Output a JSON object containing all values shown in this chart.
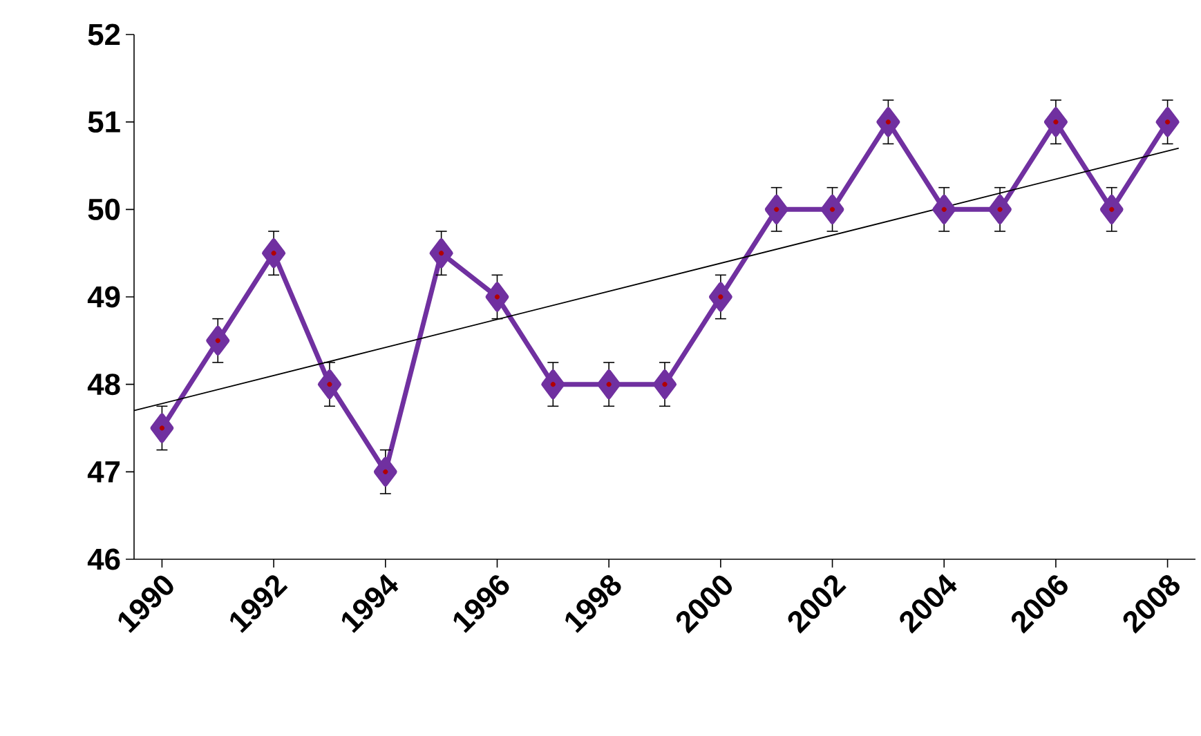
{
  "chart_data": {
    "type": "line",
    "x": [
      1990,
      1991,
      1992,
      1993,
      1994,
      1995,
      1996,
      1997,
      1998,
      1999,
      2000,
      2001,
      2002,
      2003,
      2004,
      2005,
      2006,
      2007,
      2008
    ],
    "series": [
      {
        "color": "#7030a0",
        "values": [
          47.5,
          48.5,
          49.5,
          48,
          47,
          49.5,
          49,
          48,
          48,
          48,
          49,
          50,
          50,
          51,
          50,
          50,
          51,
          50,
          51
        ],
        "errors": [
          0.25,
          0.25,
          0.25,
          0.25,
          0.25,
          0.25,
          0.25,
          0.25,
          0.25,
          0.25,
          0.25,
          0.25,
          0.25,
          0.25,
          0.25,
          0.25,
          0.25,
          0.25,
          0.25
        ],
        "marker": "diamond",
        "line_style": "solid"
      },
      {
        "type": "line",
        "color": "#000000",
        "x": [
          1989.5,
          2008.2
        ],
        "values": [
          47.7,
          50.7
        ],
        "marker": "none",
        "line_style": "solid"
      }
    ],
    "xlim": [
      1989.5,
      2008.5
    ],
    "xticks": [
      1990,
      1992,
      1994,
      1996,
      1998,
      2000,
      2002,
      2004,
      2006,
      2008
    ],
    "ylim": [
      46,
      52
    ],
    "yticks": [
      46,
      47,
      48,
      49,
      50,
      51,
      52
    ]
  }
}
